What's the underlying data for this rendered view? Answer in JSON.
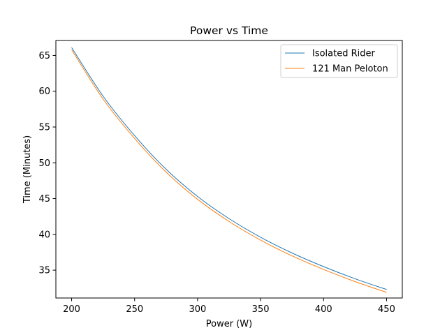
{
  "chart_data": {
    "type": "line",
    "title": "Power vs Time",
    "xlabel": "Power (W)",
    "ylabel": "Time (Minutes)",
    "xlim": [
      187.5,
      462.5
    ],
    "ylim": [
      31.11,
      67.09
    ],
    "xticks": [
      200,
      250,
      300,
      350,
      400,
      450
    ],
    "yticks": [
      35,
      40,
      45,
      50,
      55,
      60,
      65
    ],
    "grid": false,
    "legend_position": "top-right",
    "x": [
      200,
      225,
      250,
      275,
      300,
      325,
      350,
      375,
      400,
      425,
      450
    ],
    "series": [
      {
        "name": "Isolated Rider",
        "color": "#1f77b4",
        "values": [
          66.1,
          59.3,
          53.8,
          49.1,
          45.3,
          42.2,
          39.6,
          37.4,
          35.5,
          33.8,
          32.3
        ]
      },
      {
        "name": "121 Man Peloton",
        "color": "#ff7f0e",
        "values": [
          65.8,
          58.9,
          53.4,
          48.7,
          44.9,
          41.8,
          39.2,
          37.0,
          35.1,
          33.4,
          31.9
        ]
      }
    ]
  }
}
